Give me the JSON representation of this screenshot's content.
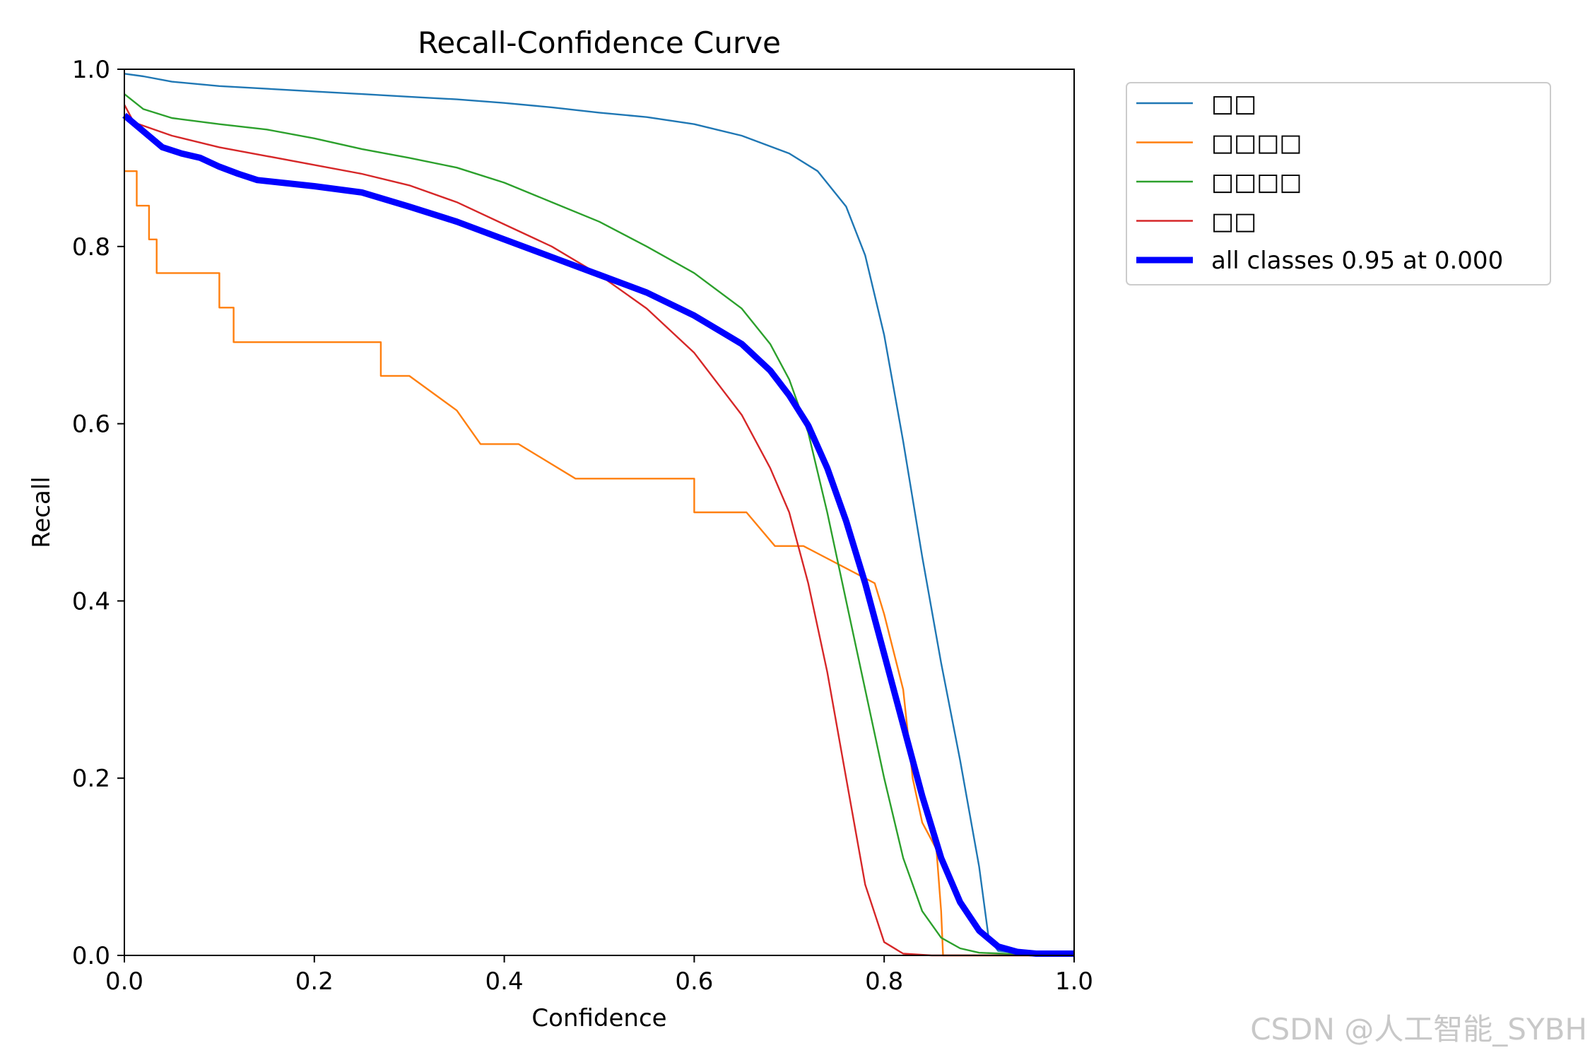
{
  "chart_data": {
    "type": "line",
    "title": "Recall-Confidence Curve",
    "xlabel": "Confidence",
    "ylabel": "Recall",
    "xlim": [
      0.0,
      1.0
    ],
    "ylim": [
      0.0,
      1.0
    ],
    "xticks": [
      "0.0",
      "0.2",
      "0.4",
      "0.6",
      "0.8",
      "1.0"
    ],
    "yticks": [
      "0.0",
      "0.2",
      "0.4",
      "0.6",
      "0.8",
      "1.0"
    ],
    "legend_position": "outside-top-right",
    "series": [
      {
        "name": "□□",
        "color": "#1f77b4",
        "width": "thin",
        "points": [
          [
            0.0,
            0.995
          ],
          [
            0.02,
            0.992
          ],
          [
            0.05,
            0.986
          ],
          [
            0.1,
            0.981
          ],
          [
            0.15,
            0.978
          ],
          [
            0.2,
            0.975
          ],
          [
            0.25,
            0.972
          ],
          [
            0.3,
            0.969
          ],
          [
            0.35,
            0.966
          ],
          [
            0.4,
            0.962
          ],
          [
            0.45,
            0.957
          ],
          [
            0.5,
            0.951
          ],
          [
            0.55,
            0.946
          ],
          [
            0.6,
            0.938
          ],
          [
            0.65,
            0.925
          ],
          [
            0.7,
            0.905
          ],
          [
            0.73,
            0.885
          ],
          [
            0.76,
            0.845
          ],
          [
            0.78,
            0.79
          ],
          [
            0.8,
            0.7
          ],
          [
            0.82,
            0.58
          ],
          [
            0.84,
            0.45
          ],
          [
            0.86,
            0.33
          ],
          [
            0.88,
            0.22
          ],
          [
            0.9,
            0.1
          ],
          [
            0.91,
            0.02
          ],
          [
            0.92,
            0.005
          ],
          [
            0.95,
            0.002
          ],
          [
            1.0,
            0.002
          ]
        ]
      },
      {
        "name": "□□□□",
        "color": "#ff7f0e",
        "width": "thin",
        "points": [
          [
            0.0,
            0.885
          ],
          [
            0.013,
            0.885
          ],
          [
            0.013,
            0.846
          ],
          [
            0.026,
            0.846
          ],
          [
            0.026,
            0.808
          ],
          [
            0.034,
            0.808
          ],
          [
            0.034,
            0.77
          ],
          [
            0.1,
            0.77
          ],
          [
            0.1,
            0.731
          ],
          [
            0.115,
            0.731
          ],
          [
            0.115,
            0.692
          ],
          [
            0.27,
            0.692
          ],
          [
            0.27,
            0.654
          ],
          [
            0.3,
            0.654
          ],
          [
            0.35,
            0.615
          ],
          [
            0.375,
            0.577
          ],
          [
            0.415,
            0.577
          ],
          [
            0.475,
            0.538
          ],
          [
            0.6,
            0.538
          ],
          [
            0.6,
            0.5
          ],
          [
            0.655,
            0.5
          ],
          [
            0.685,
            0.462
          ],
          [
            0.715,
            0.462
          ],
          [
            0.79,
            0.42
          ],
          [
            0.8,
            0.385
          ],
          [
            0.82,
            0.3
          ],
          [
            0.83,
            0.2
          ],
          [
            0.84,
            0.15
          ],
          [
            0.855,
            0.12
          ],
          [
            0.86,
            0.05
          ],
          [
            0.862,
            0.0
          ],
          [
            1.0,
            0.0
          ]
        ]
      },
      {
        "name": "□□□□",
        "color": "#2ca02c",
        "width": "thin",
        "points": [
          [
            0.0,
            0.972
          ],
          [
            0.02,
            0.955
          ],
          [
            0.05,
            0.945
          ],
          [
            0.1,
            0.938
          ],
          [
            0.15,
            0.932
          ],
          [
            0.2,
            0.922
          ],
          [
            0.25,
            0.91
          ],
          [
            0.3,
            0.9
          ],
          [
            0.35,
            0.889
          ],
          [
            0.4,
            0.872
          ],
          [
            0.45,
            0.85
          ],
          [
            0.5,
            0.828
          ],
          [
            0.55,
            0.8
          ],
          [
            0.6,
            0.77
          ],
          [
            0.65,
            0.73
          ],
          [
            0.68,
            0.69
          ],
          [
            0.7,
            0.65
          ],
          [
            0.72,
            0.59
          ],
          [
            0.74,
            0.5
          ],
          [
            0.76,
            0.4
          ],
          [
            0.78,
            0.3
          ],
          [
            0.8,
            0.2
          ],
          [
            0.82,
            0.11
          ],
          [
            0.84,
            0.05
          ],
          [
            0.86,
            0.02
          ],
          [
            0.88,
            0.008
          ],
          [
            0.9,
            0.003
          ],
          [
            0.95,
            0.001
          ],
          [
            1.0,
            0.0
          ]
        ]
      },
      {
        "name": "□□",
        "color": "#d62728",
        "width": "thin",
        "points": [
          [
            0.0,
            0.96
          ],
          [
            0.01,
            0.94
          ],
          [
            0.05,
            0.925
          ],
          [
            0.1,
            0.912
          ],
          [
            0.15,
            0.902
          ],
          [
            0.2,
            0.892
          ],
          [
            0.25,
            0.882
          ],
          [
            0.3,
            0.869
          ],
          [
            0.35,
            0.85
          ],
          [
            0.4,
            0.825
          ],
          [
            0.45,
            0.8
          ],
          [
            0.5,
            0.768
          ],
          [
            0.55,
            0.73
          ],
          [
            0.6,
            0.68
          ],
          [
            0.65,
            0.61
          ],
          [
            0.68,
            0.55
          ],
          [
            0.7,
            0.5
          ],
          [
            0.72,
            0.42
          ],
          [
            0.74,
            0.32
          ],
          [
            0.76,
            0.2
          ],
          [
            0.78,
            0.08
          ],
          [
            0.8,
            0.015
          ],
          [
            0.82,
            0.002
          ],
          [
            0.85,
            0.0
          ],
          [
            1.0,
            0.0
          ]
        ]
      },
      {
        "name": "all classes 0.95 at 0.000",
        "color": "#0000ff",
        "width": "thick",
        "points": [
          [
            0.0,
            0.948
          ],
          [
            0.02,
            0.93
          ],
          [
            0.04,
            0.912
          ],
          [
            0.06,
            0.905
          ],
          [
            0.08,
            0.9
          ],
          [
            0.1,
            0.89
          ],
          [
            0.12,
            0.882
          ],
          [
            0.14,
            0.875
          ],
          [
            0.2,
            0.868
          ],
          [
            0.25,
            0.861
          ],
          [
            0.3,
            0.845
          ],
          [
            0.35,
            0.828
          ],
          [
            0.4,
            0.808
          ],
          [
            0.45,
            0.788
          ],
          [
            0.5,
            0.768
          ],
          [
            0.55,
            0.748
          ],
          [
            0.6,
            0.722
          ],
          [
            0.65,
            0.69
          ],
          [
            0.68,
            0.66
          ],
          [
            0.7,
            0.632
          ],
          [
            0.72,
            0.598
          ],
          [
            0.74,
            0.55
          ],
          [
            0.76,
            0.49
          ],
          [
            0.78,
            0.42
          ],
          [
            0.8,
            0.34
          ],
          [
            0.82,
            0.26
          ],
          [
            0.84,
            0.18
          ],
          [
            0.86,
            0.11
          ],
          [
            0.88,
            0.06
          ],
          [
            0.9,
            0.028
          ],
          [
            0.92,
            0.01
          ],
          [
            0.94,
            0.004
          ],
          [
            0.96,
            0.002
          ],
          [
            1.0,
            0.002
          ]
        ]
      }
    ]
  },
  "watermark": "CSDN @人工智能_SYBH"
}
